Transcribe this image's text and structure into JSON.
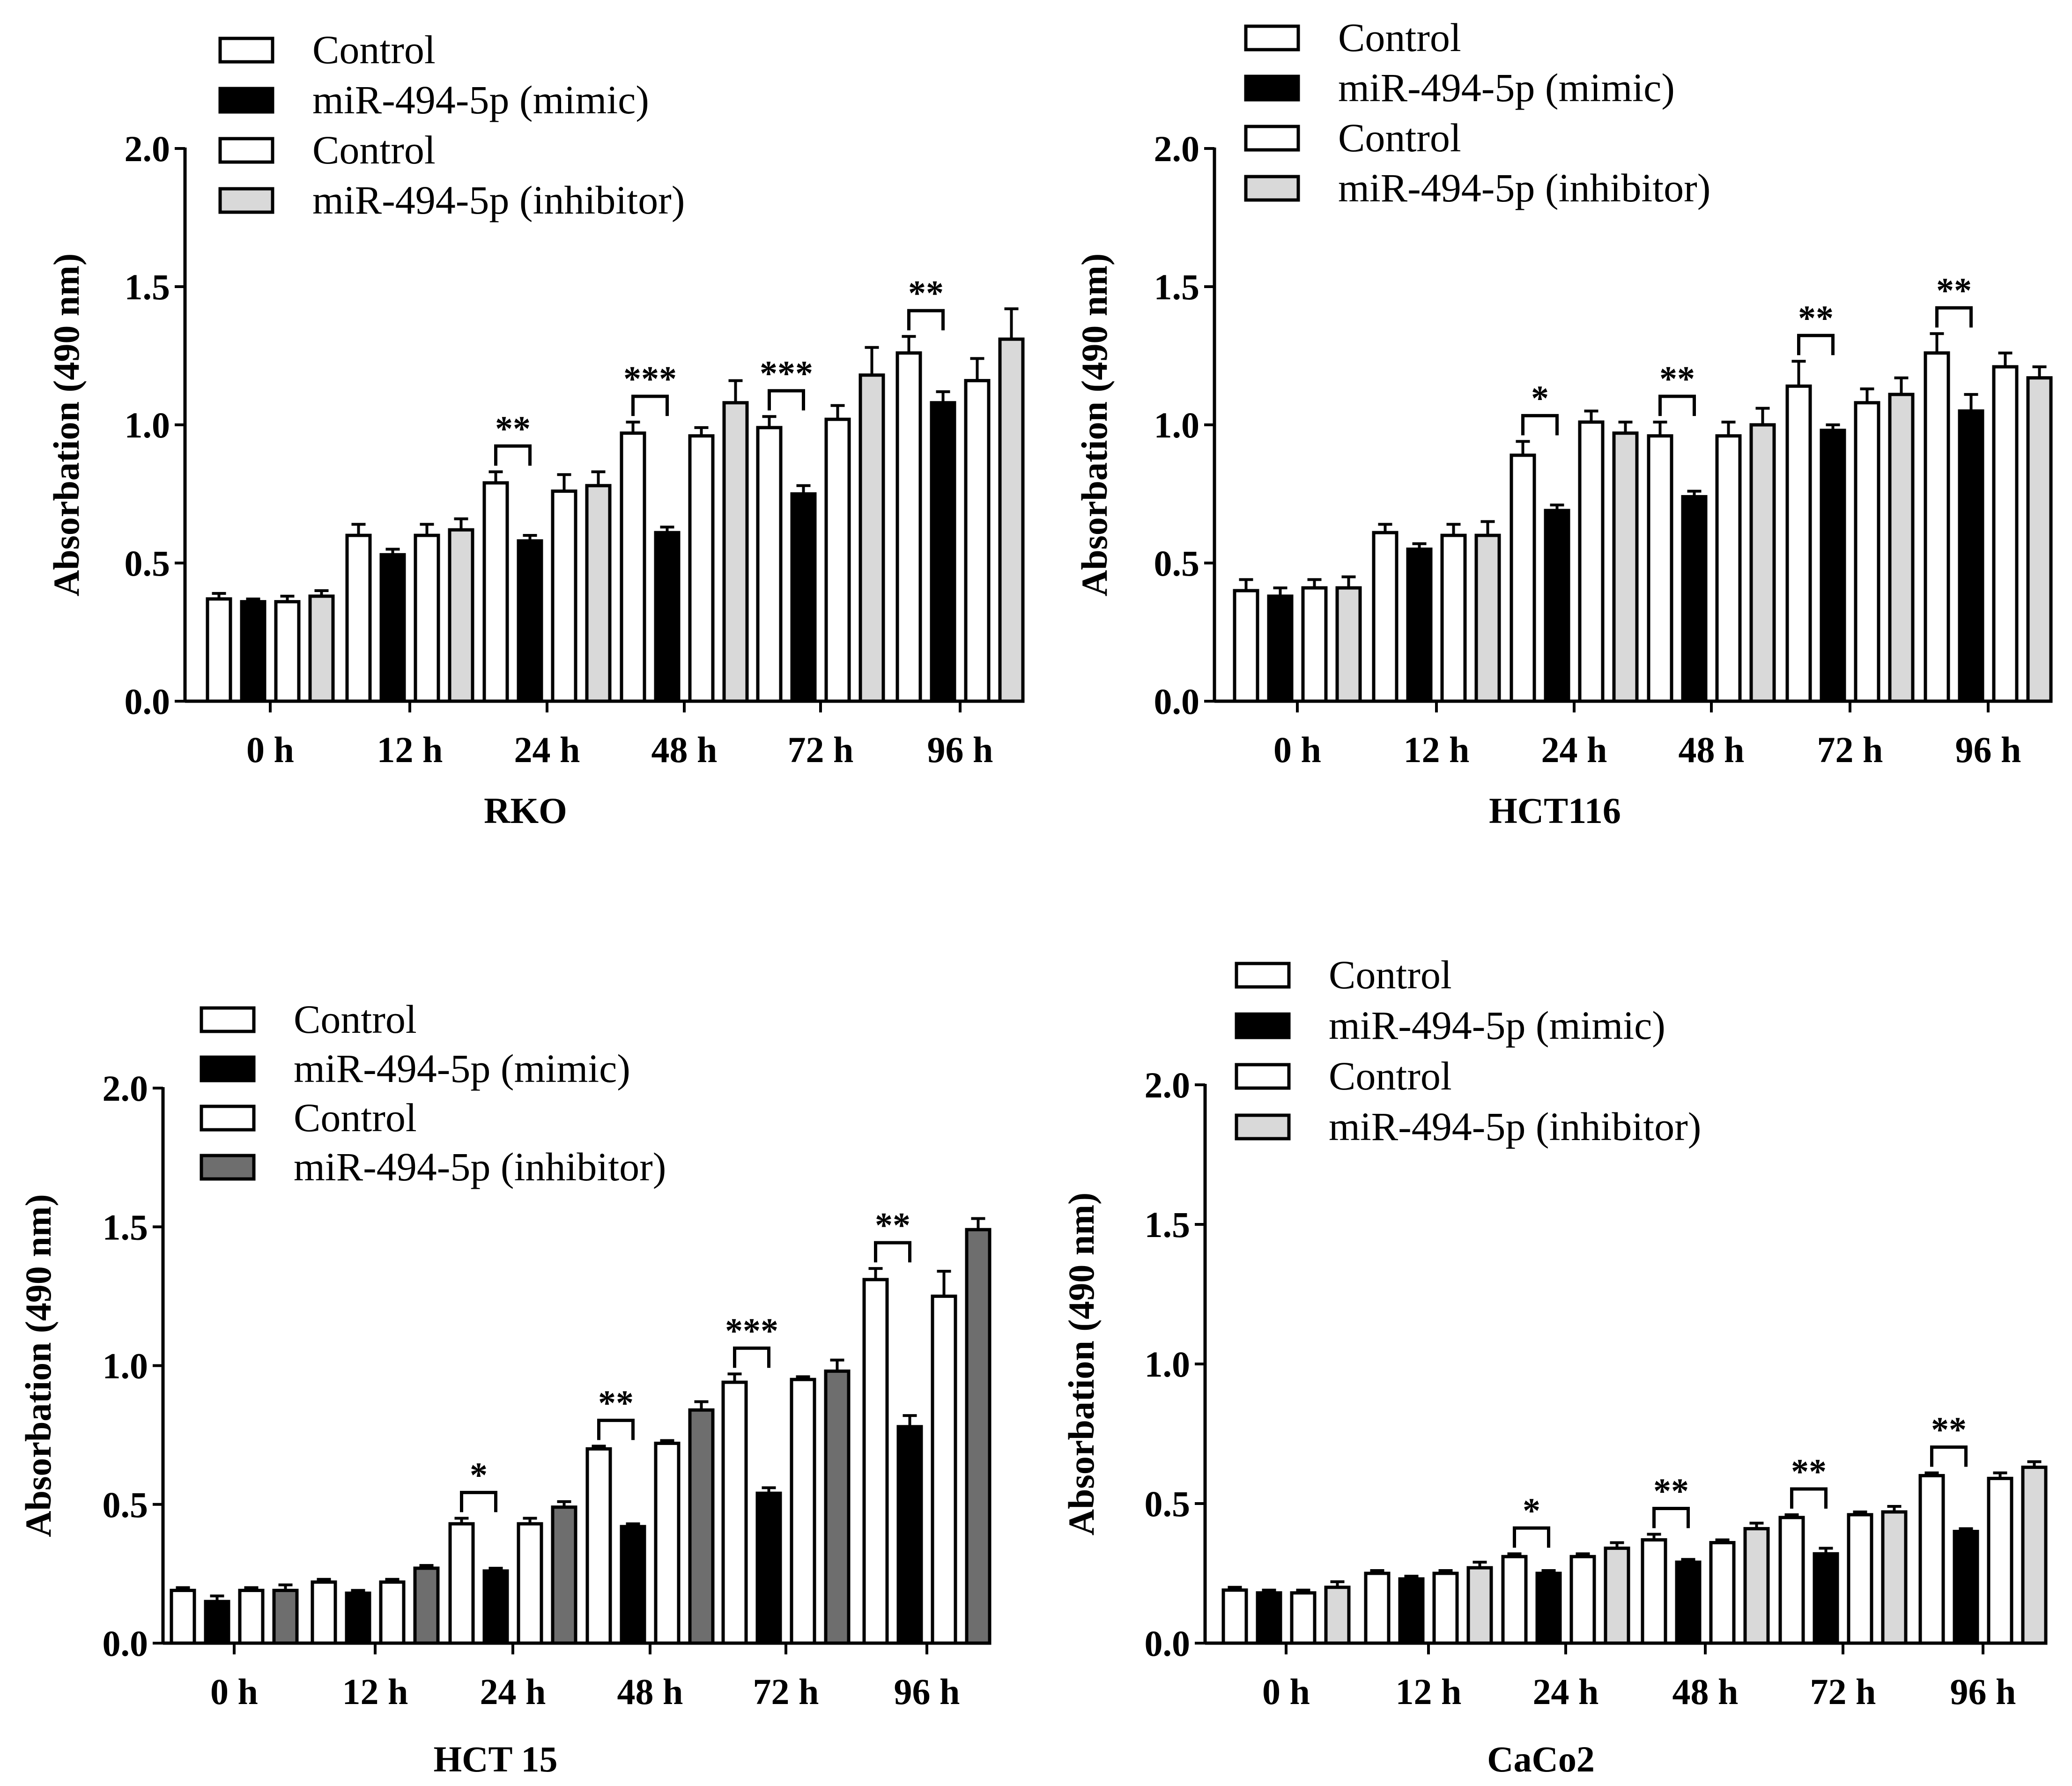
{
  "figure_colors": {
    "control": "#ffffff",
    "mimic": "#000000",
    "inhibitor_light": "#d9d9d9",
    "inhibitor_dark": "#6e6e6e",
    "axis": "#000000"
  },
  "chart_data": [
    {
      "type": "bar",
      "title": "",
      "xlabel": "RKO",
      "ylabel": "Absorbation (490 nm)",
      "ylim": [
        0,
        2.0
      ],
      "yticks": [
        "0.0",
        "0.5",
        "1.0",
        "1.5",
        "2.0"
      ],
      "categories": [
        "0 h",
        "12 h",
        "24 h",
        "48 h",
        "72 h",
        "96 h"
      ],
      "legend": [
        "Control",
        "miR-494-5p (mimic)",
        "Control",
        "miR-494-5p (inhibitor)"
      ],
      "series": [
        {
          "name": "Control",
          "fill": "#ffffff",
          "values": [
            0.37,
            0.6,
            0.79,
            0.97,
            0.99,
            1.26
          ],
          "errors": [
            0.02,
            0.04,
            0.04,
            0.04,
            0.04,
            0.06
          ]
        },
        {
          "name": "miR-494-5p (mimic)",
          "fill": "#000000",
          "values": [
            0.36,
            0.53,
            0.58,
            0.61,
            0.75,
            1.08
          ],
          "errors": [
            0.01,
            0.02,
            0.02,
            0.02,
            0.03,
            0.04
          ]
        },
        {
          "name": "Control",
          "fill": "#ffffff",
          "values": [
            0.36,
            0.6,
            0.76,
            0.96,
            1.02,
            1.16
          ],
          "errors": [
            0.02,
            0.04,
            0.06,
            0.03,
            0.05,
            0.08
          ]
        },
        {
          "name": "miR-494-5p (inhibitor)",
          "fill": "#d9d9d9",
          "values": [
            0.38,
            0.62,
            0.78,
            1.08,
            1.18,
            1.31
          ],
          "errors": [
            0.02,
            0.04,
            0.05,
            0.08,
            0.1,
            0.11
          ]
        }
      ],
      "significance": [
        "",
        "",
        "**",
        "***",
        "***",
        "**"
      ]
    },
    {
      "type": "bar",
      "title": "",
      "xlabel": "HCT116",
      "ylabel": "Absorbation (490 nm)",
      "ylim": [
        0,
        2.0
      ],
      "yticks": [
        "0.0",
        "0.5",
        "1.0",
        "1.5",
        "2.0"
      ],
      "categories": [
        "0 h",
        "12 h",
        "24 h",
        "48 h",
        "72 h",
        "96 h"
      ],
      "legend": [
        "Control",
        "miR-494-5p (mimic)",
        "Control",
        "miR-494-5p (inhibitor)"
      ],
      "series": [
        {
          "name": "Control",
          "fill": "#ffffff",
          "values": [
            0.4,
            0.61,
            0.89,
            0.96,
            1.14,
            1.26
          ],
          "errors": [
            0.04,
            0.03,
            0.05,
            0.05,
            0.09,
            0.07
          ]
        },
        {
          "name": "miR-494-5p (mimic)",
          "fill": "#000000",
          "values": [
            0.38,
            0.55,
            0.69,
            0.74,
            0.98,
            1.05
          ],
          "errors": [
            0.03,
            0.02,
            0.02,
            0.02,
            0.02,
            0.06
          ]
        },
        {
          "name": "Control",
          "fill": "#ffffff",
          "values": [
            0.41,
            0.6,
            1.01,
            0.96,
            1.08,
            1.21
          ],
          "errors": [
            0.03,
            0.04,
            0.04,
            0.05,
            0.05,
            0.05
          ]
        },
        {
          "name": "miR-494-5p (inhibitor)",
          "fill": "#d9d9d9",
          "values": [
            0.41,
            0.6,
            0.97,
            1.0,
            1.11,
            1.17
          ],
          "errors": [
            0.04,
            0.05,
            0.04,
            0.06,
            0.06,
            0.04
          ]
        }
      ],
      "significance": [
        "",
        "",
        "*",
        "**",
        "**",
        "**"
      ]
    },
    {
      "type": "bar",
      "title": "",
      "xlabel": "HCT 15",
      "ylabel": "Absorbation (490 nm)",
      "ylim": [
        0,
        2.0
      ],
      "yticks": [
        "0.0",
        "0.5",
        "1.0",
        "1.5",
        "2.0"
      ],
      "categories": [
        "0 h",
        "12 h",
        "24 h",
        "48 h",
        "72 h",
        "96 h"
      ],
      "legend": [
        "Control",
        "miR-494-5p (mimic)",
        "Control",
        "miR-494-5p (inhibitor)"
      ],
      "series": [
        {
          "name": "Control",
          "fill": "#ffffff",
          "values": [
            0.19,
            0.22,
            0.43,
            0.7,
            0.94,
            1.31
          ],
          "errors": [
            0.01,
            0.01,
            0.02,
            0.01,
            0.03,
            0.04
          ]
        },
        {
          "name": "miR-494-5p (mimic)",
          "fill": "#000000",
          "values": [
            0.15,
            0.18,
            0.26,
            0.42,
            0.54,
            0.78
          ],
          "errors": [
            0.02,
            0.01,
            0.01,
            0.01,
            0.02,
            0.04
          ]
        },
        {
          "name": "Control",
          "fill": "#ffffff",
          "values": [
            0.19,
            0.22,
            0.43,
            0.72,
            0.95,
            1.25
          ],
          "errors": [
            0.01,
            0.01,
            0.02,
            0.01,
            0.01,
            0.09
          ]
        },
        {
          "name": "miR-494-5p (inhibitor)",
          "fill": "#6e6e6e",
          "values": [
            0.19,
            0.27,
            0.49,
            0.84,
            0.98,
            1.49
          ],
          "errors": [
            0.02,
            0.01,
            0.02,
            0.03,
            0.04,
            0.04
          ]
        }
      ],
      "significance": [
        "",
        "",
        "*",
        "**",
        "***",
        "**"
      ]
    },
    {
      "type": "bar",
      "title": "",
      "xlabel": "CaCo2",
      "ylabel": "Absorbation (490 nm)",
      "ylim": [
        0,
        2.0
      ],
      "yticks": [
        "0.0",
        "0.5",
        "1.0",
        "1.5",
        "2.0"
      ],
      "categories": [
        "0 h",
        "12 h",
        "24 h",
        "48 h",
        "72 h",
        "96 h"
      ],
      "legend": [
        "Control",
        "miR-494-5p (mimic)",
        "Control",
        "miR-494-5p (inhibitor)"
      ],
      "series": [
        {
          "name": "Control",
          "fill": "#ffffff",
          "values": [
            0.19,
            0.25,
            0.31,
            0.37,
            0.45,
            0.6
          ],
          "errors": [
            0.01,
            0.01,
            0.01,
            0.02,
            0.01,
            0.01
          ]
        },
        {
          "name": "miR-494-5p (mimic)",
          "fill": "#000000",
          "values": [
            0.18,
            0.23,
            0.25,
            0.29,
            0.32,
            0.4
          ],
          "errors": [
            0.01,
            0.01,
            0.01,
            0.01,
            0.02,
            0.01
          ]
        },
        {
          "name": "Control",
          "fill": "#ffffff",
          "values": [
            0.18,
            0.25,
            0.31,
            0.36,
            0.46,
            0.59
          ],
          "errors": [
            0.01,
            0.01,
            0.01,
            0.01,
            0.01,
            0.02
          ]
        },
        {
          "name": "miR-494-5p (inhibitor)",
          "fill": "#d9d9d9",
          "values": [
            0.2,
            0.27,
            0.34,
            0.41,
            0.47,
            0.63
          ],
          "errors": [
            0.02,
            0.02,
            0.02,
            0.02,
            0.02,
            0.02
          ]
        }
      ],
      "significance": [
        "",
        "",
        "*",
        "**",
        "**",
        "**"
      ]
    }
  ]
}
